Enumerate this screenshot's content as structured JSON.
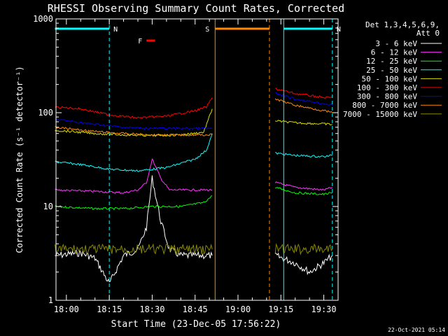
{
  "chart_data": {
    "type": "line",
    "title": "RHESSI Observing Summary Count Rates, Corrected",
    "xlabel": "Start Time (23-Dec-05 17:56:22)",
    "ylabel": "Corrected Count Rate (s⁻¹ detector⁻¹)",
    "yscale": "log",
    "ylim": [
      1,
      1000
    ],
    "xlim": [
      "17:56:22",
      "19:35:00"
    ],
    "x_tick_labels": [
      "18:00",
      "18:15",
      "18:30",
      "18:45",
      "19:00",
      "19:15",
      "19:30"
    ],
    "y_tick_labels": [
      "1",
      "10",
      "100",
      "1000"
    ],
    "legend_header": [
      "Det 1,3,4,5,6,9,",
      "Att 0"
    ],
    "legend_position": "right",
    "footer_date": "22-Oct-2021 05:14",
    "grid": false,
    "series": [
      {
        "name": "3 - 6 keV",
        "color": "#ffffff",
        "segments": [
          {
            "x": [
              "17:56",
              "18:05",
              "18:10",
              "18:15",
              "18:20",
              "18:25",
              "18:28",
              "18:30",
              "18:33",
              "18:36",
              "18:40",
              "18:45",
              "18:51"
            ],
            "y": [
              3.0,
              3.2,
              2.8,
              1.5,
              3.0,
              3.5,
              6.0,
              20.0,
              7.0,
              3.5,
              3.0,
              3.0,
              3.0
            ]
          },
          {
            "x": [
              "19:13",
              "19:20",
              "19:25",
              "19:30",
              "19:33"
            ],
            "y": [
              3.0,
              2.5,
              2.0,
              2.5,
              3.0
            ]
          }
        ]
      },
      {
        "name": "6 - 12 keV",
        "color": "#ff33ff",
        "segments": [
          {
            "x": [
              "17:56",
              "18:10",
              "18:20",
              "18:25",
              "18:28",
              "18:30",
              "18:33",
              "18:36",
              "18:42",
              "18:51"
            ],
            "y": [
              15,
              14.5,
              14,
              15,
              18,
              32,
              20,
              15,
              15,
              15
            ]
          },
          {
            "x": [
              "19:13",
              "19:20",
              "19:30",
              "19:33"
            ],
            "y": [
              18,
              16,
              15,
              16
            ]
          }
        ]
      },
      {
        "name": "12 - 25 keV",
        "color": "#00ff00",
        "segments": [
          {
            "x": [
              "17:56",
              "18:10",
              "18:20",
              "18:30",
              "18:40",
              "18:48",
              "18:51"
            ],
            "y": [
              10,
              9.5,
              9.5,
              10,
              10,
              11,
              13
            ]
          },
          {
            "x": [
              "19:13",
              "19:20",
              "19:30",
              "19:33"
            ],
            "y": [
              16,
              14,
              13.5,
              14
            ]
          }
        ]
      },
      {
        "name": "25 - 50 keV",
        "color": "#00ffff",
        "segments": [
          {
            "x": [
              "17:56",
              "18:05",
              "18:15",
              "18:25",
              "18:35",
              "18:45",
              "18:49",
              "18:51"
            ],
            "y": [
              30,
              28,
              25,
              24,
              26,
              32,
              40,
              60
            ]
          },
          {
            "x": [
              "19:13",
              "19:20",
              "19:30",
              "19:33"
            ],
            "y": [
              37,
              35,
              34,
              35
            ]
          }
        ]
      },
      {
        "name": "50 - 100 keV",
        "color": "#dddd00",
        "segments": [
          {
            "x": [
              "17:56",
              "18:10",
              "18:20",
              "18:30",
              "18:40",
              "18:48",
              "18:51"
            ],
            "y": [
              65,
              60,
              58,
              57,
              58,
              62,
              110
            ]
          },
          {
            "x": [
              "19:13",
              "19:20",
              "19:30",
              "19:33"
            ],
            "y": [
              82,
              78,
              76,
              75
            ]
          }
        ]
      },
      {
        "name": "100 - 300 keV",
        "color": "#ff0000",
        "segments": [
          {
            "x": [
              "17:56",
              "18:05",
              "18:15",
              "18:25",
              "18:35",
              "18:45",
              "18:49",
              "18:51"
            ],
            "y": [
              115,
              110,
              95,
              88,
              92,
              105,
              115,
              145
            ]
          },
          {
            "x": [
              "19:13",
              "19:20",
              "19:30",
              "19:33"
            ],
            "y": [
              180,
              160,
              145,
              145
            ]
          }
        ]
      },
      {
        "name": "300 - 800 keV",
        "color": "#0000ff",
        "segments": [
          {
            "x": [
              "17:56",
              "18:10",
              "18:20",
              "18:30",
              "18:40",
              "18:51"
            ],
            "y": [
              85,
              75,
              70,
              68,
              68,
              68
            ]
          },
          {
            "x": [
              "19:13",
              "19:20",
              "19:30",
              "19:33"
            ],
            "y": [
              160,
              140,
              125,
              120
            ]
          }
        ]
      },
      {
        "name": "800 - 7000 keV",
        "color": "#ff8800",
        "segments": [
          {
            "x": [
              "17:56",
              "18:10",
              "18:20",
              "18:30",
              "18:40",
              "18:51"
            ],
            "y": [
              70,
              63,
              60,
              58,
              58,
              58
            ]
          },
          {
            "x": [
              "19:13",
              "19:20",
              "19:30",
              "19:33"
            ],
            "y": [
              140,
              120,
              105,
              100
            ]
          }
        ]
      },
      {
        "name": "7000 - 15000 keV",
        "color": "#888800",
        "segments": [
          {
            "x": [
              "17:56",
              "18:10",
              "18:20",
              "18:30",
              "18:40",
              "18:51"
            ],
            "y": [
              3.5,
              3.5,
              3.5,
              3.5,
              3.5,
              3.5
            ]
          },
          {
            "x": [
              "19:13",
              "19:20",
              "19:30",
              "19:33"
            ],
            "y": [
              3.5,
              3.5,
              3.5,
              3.5
            ]
          }
        ]
      }
    ],
    "annotations": [
      {
        "label": "N",
        "color": "#00ffff",
        "marker_from": "17:56",
        "marker_to": "18:15",
        "dashed_at": "18:15"
      },
      {
        "label": "N",
        "color": "#00ffff",
        "marker_from": "19:16",
        "marker_to": "19:33",
        "dashed_at": "19:33",
        "solid_at": "19:16"
      },
      {
        "label": "S",
        "color": "#ff8800",
        "marker_from": "18:52",
        "marker_to": "19:11",
        "solid_at": "18:52",
        "dashed_at": "19:11"
      },
      {
        "label": "F",
        "color": "#ff0000",
        "marker_from": "18:28",
        "marker_to": "18:31"
      }
    ]
  }
}
